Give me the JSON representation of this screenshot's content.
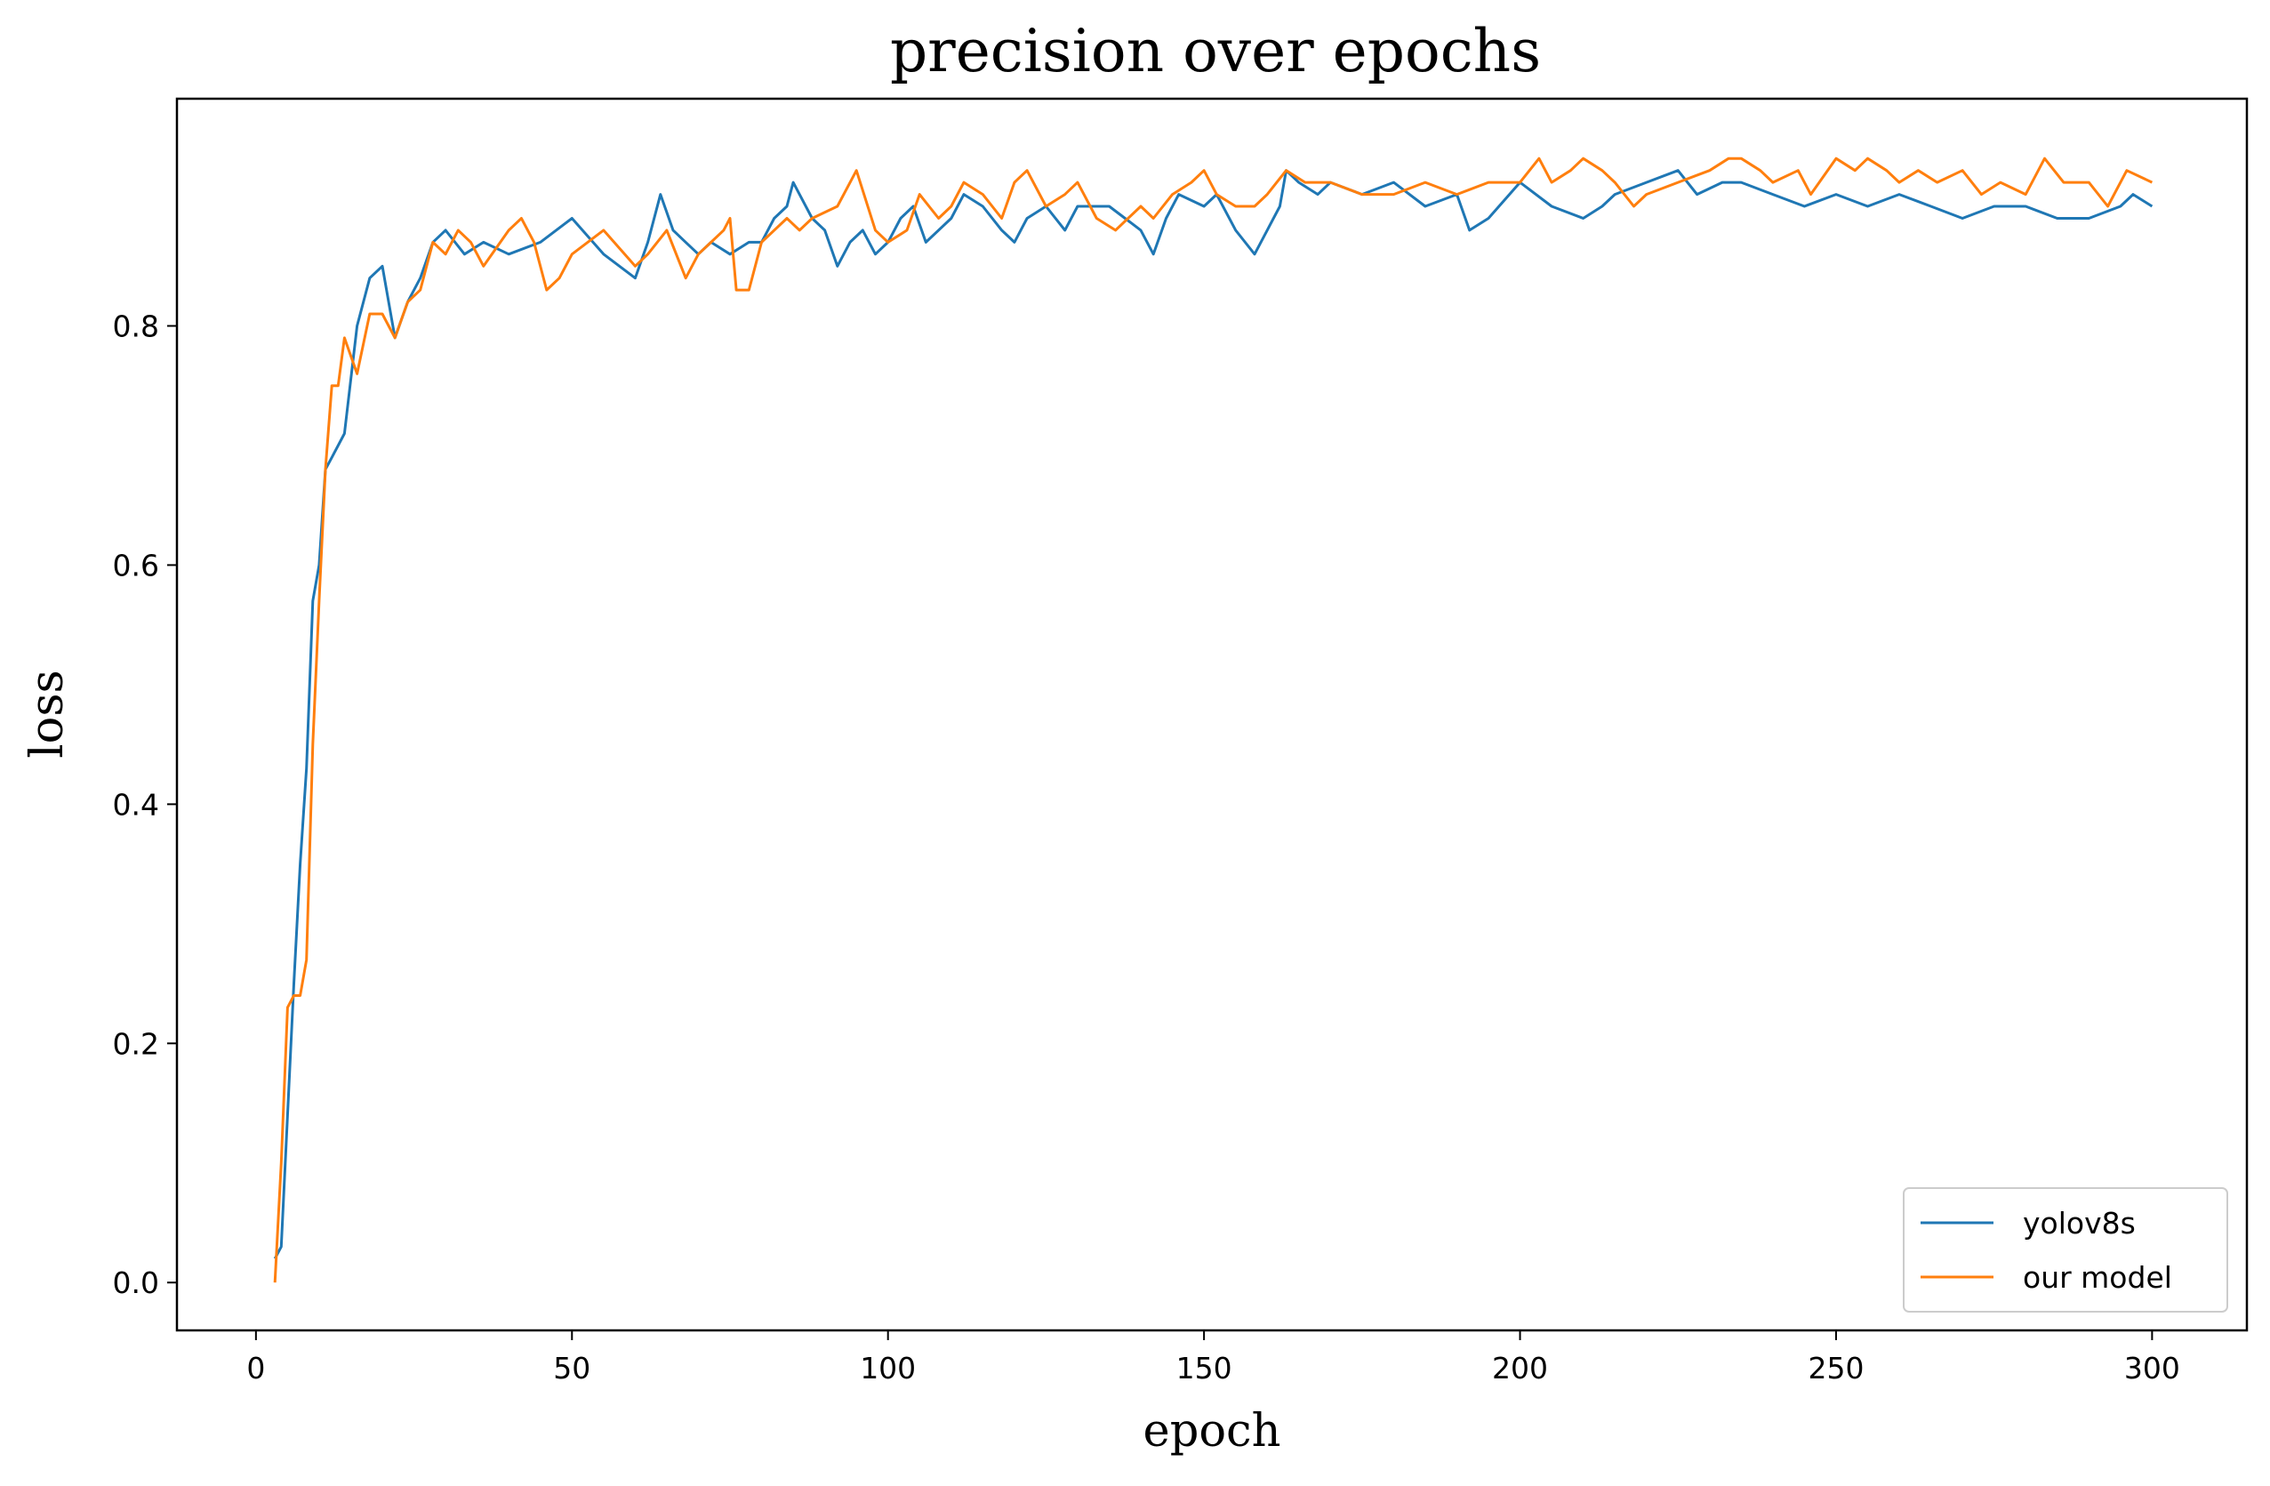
{
  "chart_data": {
    "type": "line",
    "title": "precision over epochs",
    "xlabel": "epoch",
    "ylabel": "loss",
    "xlim": [
      -12.5,
      315
    ],
    "ylim": [
      -0.04,
      0.99
    ],
    "xticks": [
      0,
      50,
      100,
      150,
      200,
      250,
      300
    ],
    "yticks": [
      0.0,
      0.2,
      0.4,
      0.6,
      0.8
    ],
    "xtick_labels": [
      "0",
      "50",
      "100",
      "150",
      "200",
      "250",
      "300"
    ],
    "ytick_labels": [
      "0.0",
      "0.2",
      "0.4",
      "0.6",
      "0.8"
    ],
    "grid": false,
    "legend_position": "lower-right",
    "series": [
      {
        "name": "yolov8s",
        "color": "#1f77b4",
        "x": [
          3,
          4,
          5,
          6,
          7,
          8,
          9,
          10,
          11,
          12,
          14,
          16,
          18,
          20,
          22,
          24,
          26,
          28,
          30,
          33,
          36,
          40,
          45,
          50,
          55,
          60,
          62,
          64,
          66,
          68,
          70,
          72,
          75,
          78,
          80,
          82,
          84,
          85,
          86,
          88,
          90,
          92,
          94,
          96,
          98,
          100,
          102,
          104,
          106,
          110,
          112,
          115,
          118,
          120,
          122,
          125,
          128,
          130,
          135,
          140,
          142,
          144,
          146,
          150,
          152,
          155,
          158,
          160,
          162,
          163,
          165,
          168,
          170,
          175,
          180,
          185,
          190,
          192,
          195,
          200,
          205,
          210,
          213,
          215,
          220,
          225,
          228,
          232,
          235,
          240,
          245,
          250,
          255,
          260,
          265,
          270,
          275,
          280,
          285,
          290,
          295,
          297,
          300
        ],
        "y": [
          0.02,
          0.03,
          0.14,
          0.25,
          0.35,
          0.43,
          0.57,
          0.6,
          0.68,
          0.69,
          0.71,
          0.8,
          0.84,
          0.85,
          0.79,
          0.82,
          0.84,
          0.87,
          0.88,
          0.86,
          0.87,
          0.86,
          0.87,
          0.89,
          0.86,
          0.84,
          0.87,
          0.91,
          0.88,
          0.87,
          0.86,
          0.87,
          0.86,
          0.87,
          0.87,
          0.89,
          0.9,
          0.92,
          0.91,
          0.89,
          0.88,
          0.85,
          0.87,
          0.88,
          0.86,
          0.87,
          0.89,
          0.9,
          0.87,
          0.89,
          0.91,
          0.9,
          0.88,
          0.87,
          0.89,
          0.9,
          0.88,
          0.9,
          0.9,
          0.88,
          0.86,
          0.89,
          0.91,
          0.9,
          0.91,
          0.88,
          0.86,
          0.88,
          0.9,
          0.93,
          0.92,
          0.91,
          0.92,
          0.91,
          0.92,
          0.9,
          0.91,
          0.88,
          0.89,
          0.92,
          0.9,
          0.89,
          0.9,
          0.91,
          0.92,
          0.93,
          0.91,
          0.92,
          0.92,
          0.91,
          0.9,
          0.91,
          0.9,
          0.91,
          0.9,
          0.89,
          0.9,
          0.9,
          0.89,
          0.89,
          0.9,
          0.91,
          0.9
        ]
      },
      {
        "name": "our model",
        "color": "#ff7f0e",
        "x": [
          3,
          4,
          5,
          6,
          7,
          8,
          9,
          10,
          11,
          12,
          13,
          14,
          16,
          18,
          20,
          22,
          24,
          26,
          28,
          30,
          32,
          34,
          36,
          40,
          42,
          44,
          46,
          48,
          50,
          55,
          60,
          62,
          65,
          68,
          70,
          72,
          74,
          75,
          76,
          78,
          80,
          84,
          86,
          88,
          92,
          95,
          98,
          100,
          103,
          105,
          108,
          110,
          112,
          115,
          118,
          120,
          122,
          125,
          128,
          130,
          133,
          136,
          140,
          142,
          145,
          148,
          150,
          152,
          155,
          158,
          160,
          163,
          166,
          170,
          175,
          180,
          185,
          190,
          195,
          200,
          203,
          205,
          208,
          210,
          213,
          215,
          218,
          220,
          225,
          230,
          233,
          235,
          238,
          240,
          244,
          246,
          250,
          253,
          255,
          258,
          260,
          263,
          266,
          270,
          273,
          276,
          280,
          283,
          286,
          290,
          293,
          296,
          300
        ],
        "y": [
          0.0,
          0.1,
          0.23,
          0.24,
          0.24,
          0.27,
          0.45,
          0.57,
          0.68,
          0.75,
          0.75,
          0.79,
          0.76,
          0.81,
          0.81,
          0.79,
          0.82,
          0.83,
          0.87,
          0.86,
          0.88,
          0.87,
          0.85,
          0.88,
          0.89,
          0.87,
          0.83,
          0.84,
          0.86,
          0.88,
          0.85,
          0.86,
          0.88,
          0.84,
          0.86,
          0.87,
          0.88,
          0.89,
          0.83,
          0.83,
          0.87,
          0.89,
          0.88,
          0.89,
          0.9,
          0.93,
          0.88,
          0.87,
          0.88,
          0.91,
          0.89,
          0.9,
          0.92,
          0.91,
          0.89,
          0.92,
          0.93,
          0.9,
          0.91,
          0.92,
          0.89,
          0.88,
          0.9,
          0.89,
          0.91,
          0.92,
          0.93,
          0.91,
          0.9,
          0.9,
          0.91,
          0.93,
          0.92,
          0.92,
          0.91,
          0.91,
          0.92,
          0.91,
          0.92,
          0.92,
          0.94,
          0.92,
          0.93,
          0.94,
          0.93,
          0.92,
          0.9,
          0.91,
          0.92,
          0.93,
          0.94,
          0.94,
          0.93,
          0.92,
          0.93,
          0.91,
          0.94,
          0.93,
          0.94,
          0.93,
          0.92,
          0.93,
          0.92,
          0.93,
          0.91,
          0.92,
          0.91,
          0.94,
          0.92,
          0.92,
          0.9,
          0.93,
          0.92
        ]
      }
    ]
  }
}
